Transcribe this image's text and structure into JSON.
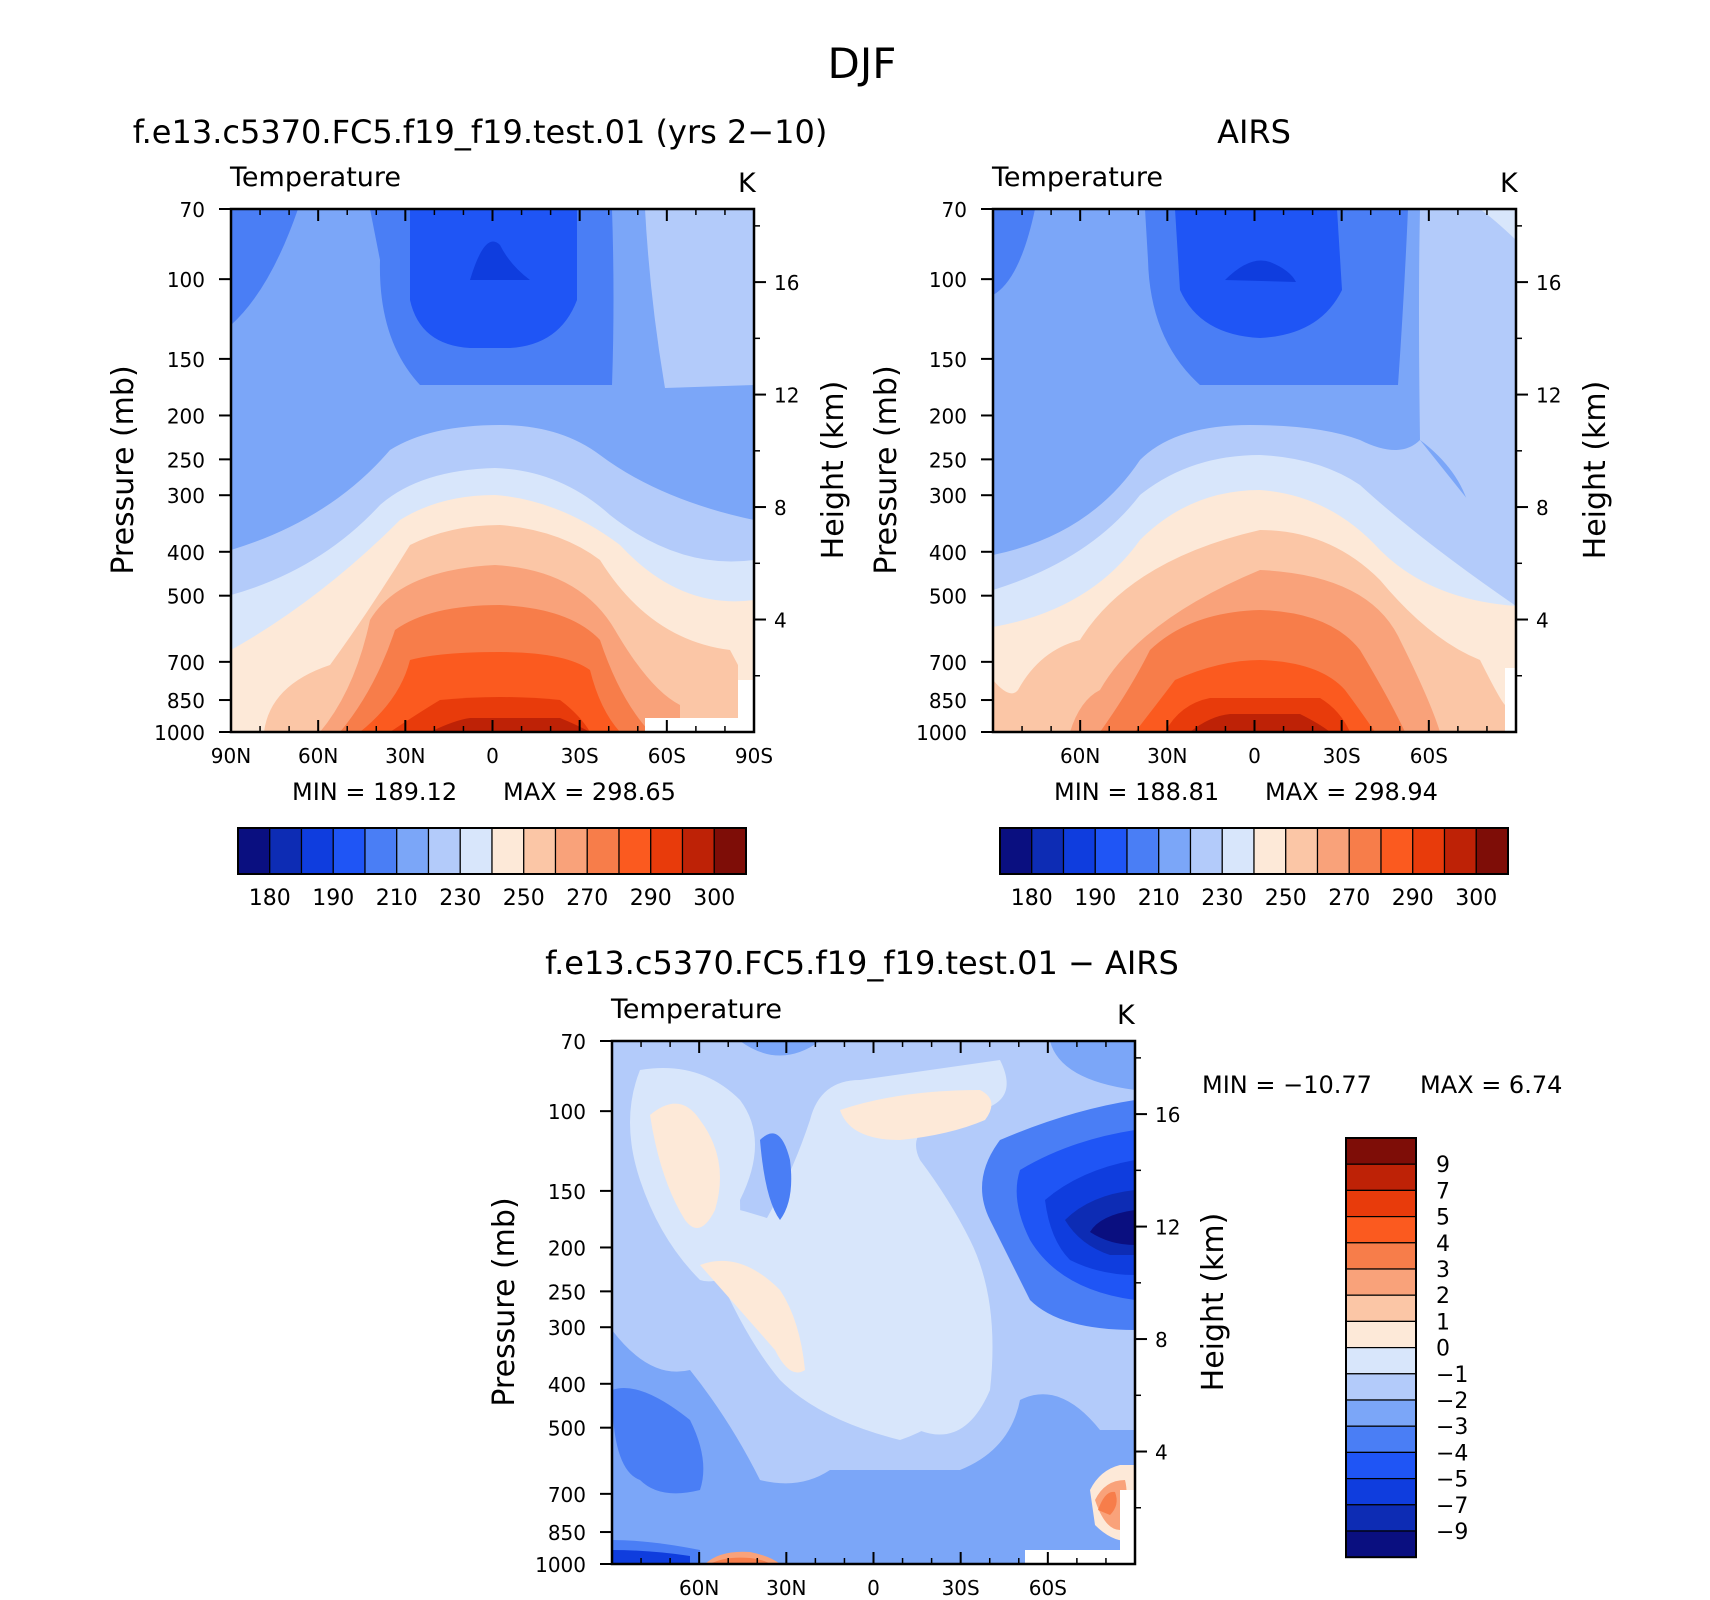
{
  "figure": {
    "title": "DJF"
  },
  "chart_data": [
    {
      "type": "heatmap",
      "title": "f.e13.c5370.FC5.f19_f19.test.01 (yrs 2−10)",
      "variable": "Temperature",
      "units": "K",
      "xlabel": "",
      "ylabel": "Pressure (mb)",
      "y2label": "Height (km)",
      "x_ticks": [
        "90N",
        "60N",
        "30N",
        "0",
        "30S",
        "60S",
        "90S"
      ],
      "y_ticks": [
        70,
        100,
        150,
        200,
        250,
        300,
        400,
        500,
        700,
        850,
        1000
      ],
      "y2_ticks": [
        4,
        8,
        12,
        16
      ],
      "min_label": "MIN = 189.12",
      "max_label": "MAX = 298.65",
      "min": 189.12,
      "max": 298.65,
      "colorbar_levels": [
        "180",
        "190",
        "210",
        "230",
        "250",
        "270",
        "290",
        "300"
      ],
      "contour_bands_K": [
        {
          "plev": 70,
          "band": "210-220"
        },
        {
          "plev": 100,
          "band": "190-200"
        },
        {
          "plev": 200,
          "band": "210-220"
        },
        {
          "plev": 300,
          "band": "230-240"
        },
        {
          "plev": 500,
          "band": "250-260"
        },
        {
          "plev": 700,
          "band": "270-280"
        },
        {
          "plev": 850,
          "band": "280-290"
        },
        {
          "plev": 1000,
          "band": "290-300"
        }
      ]
    },
    {
      "type": "heatmap",
      "title": "AIRS",
      "variable": "Temperature",
      "units": "K",
      "ylabel": "Pressure (mb)",
      "y2label": "Height (km)",
      "x_ticks": [
        "60N",
        "30N",
        "0",
        "30S",
        "60S"
      ],
      "y_ticks": [
        70,
        100,
        150,
        200,
        250,
        300,
        400,
        500,
        700,
        850,
        1000
      ],
      "y2_ticks": [
        4,
        8,
        12,
        16
      ],
      "min_label": "MIN = 188.81",
      "max_label": "MAX = 298.94",
      "min": 188.81,
      "max": 298.94,
      "colorbar_levels": [
        "180",
        "190",
        "210",
        "230",
        "250",
        "270",
        "290",
        "300"
      ]
    },
    {
      "type": "heatmap",
      "title": "f.e13.c5370.FC5.f19_f19.test.01 − AIRS",
      "variable": "Temperature",
      "units": "K",
      "ylabel": "Pressure (mb)",
      "y2label": "Height (km)",
      "x_ticks": [
        "60N",
        "30N",
        "0",
        "30S",
        "60S"
      ],
      "y_ticks": [
        70,
        100,
        150,
        200,
        250,
        300,
        400,
        500,
        700,
        850,
        1000
      ],
      "y2_ticks": [
        4,
        8,
        12,
        16
      ],
      "min_label": "MIN = −10.77",
      "max_label": "MAX = 6.74",
      "min": -10.77,
      "max": 6.74,
      "colorbar_levels": [
        "9",
        "7",
        "5",
        "4",
        "3",
        "2",
        "1",
        "0",
        "−1",
        "−2",
        "−3",
        "−4",
        "−5",
        "−7",
        "−9"
      ]
    }
  ],
  "palette": {
    "abs16": [
      "#0a0f80",
      "#0d2cb4",
      "#0f3dde",
      "#1f55f5",
      "#4a7ef5",
      "#7ba6f8",
      "#b3cbfa",
      "#d8e6fb",
      "#fde9d8",
      "#fbc6a6",
      "#f9a27a",
      "#f77d4a",
      "#fb5a1f",
      "#e83b0b",
      "#be2206",
      "#7e0d07"
    ],
    "diff16": [
      "#0a0f80",
      "#0d2cb4",
      "#0f3dde",
      "#1f55f5",
      "#4a7ef5",
      "#7ba6f8",
      "#b3cbfa",
      "#d8e6fb",
      "#fde9d8",
      "#fbc6a6",
      "#f9a27a",
      "#f77d4a",
      "#fb5a1f",
      "#e83b0b",
      "#be2206",
      "#7e0d07"
    ]
  }
}
